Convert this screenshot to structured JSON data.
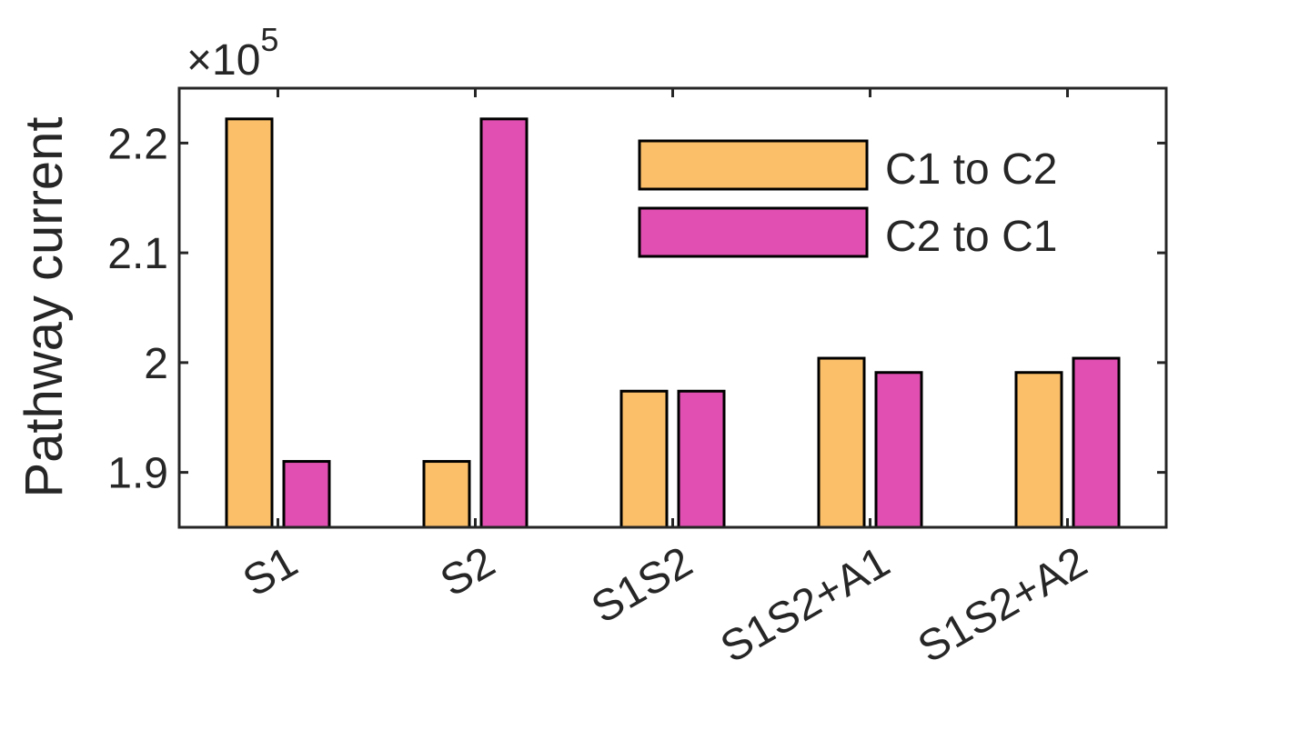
{
  "chart_data": {
    "type": "bar",
    "ylabel": "Pathway current",
    "exponent_label": "×10",
    "exponent": "5",
    "categories": [
      "S1",
      "S2",
      "S1S2",
      "S1S2+A1",
      "S1S2+A2"
    ],
    "series": [
      {
        "name": "C1 to C2",
        "color": "#FBBF69",
        "values": [
          2.222,
          1.91,
          1.974,
          2.004,
          1.991
        ]
      },
      {
        "name": "C2 to C1",
        "color": "#E04FB1",
        "values": [
          1.91,
          2.222,
          1.974,
          1.991,
          2.004
        ]
      }
    ],
    "ylim": [
      1.85,
      2.25
    ],
    "yticks": [
      1.9,
      2.0,
      2.1,
      2.2
    ],
    "ytick_labels": [
      "1.9",
      "2",
      "2.1",
      "2.2"
    ],
    "legend_position": "top-right",
    "grid": false
  }
}
